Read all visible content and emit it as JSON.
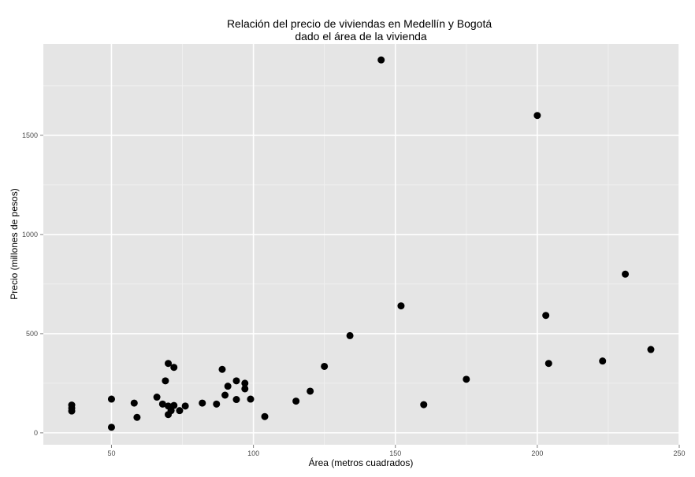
{
  "chart_data": {
    "type": "scatter",
    "title": [
      "Relación del precio de viviendas en Medellín y Bogotá",
      "dado el área de la vivienda"
    ],
    "xlabel": "Área (metros cuadrados)",
    "ylabel": "Precio (millones de pesos)",
    "xlim": [
      26,
      250
    ],
    "ylim": [
      -60,
      1960
    ],
    "xticks": [
      50,
      100,
      150,
      200,
      250
    ],
    "yticks": [
      0,
      500,
      1000,
      1500
    ],
    "grid": true,
    "legend": "none",
    "colors": {
      "panel": "#e5e5e5",
      "grid": "#ffffff",
      "point": "#000000"
    },
    "points": [
      {
        "x": 36,
        "y": 140
      },
      {
        "x": 36,
        "y": 125
      },
      {
        "x": 36,
        "y": 110
      },
      {
        "x": 50,
        "y": 170
      },
      {
        "x": 50,
        "y": 28
      },
      {
        "x": 58,
        "y": 150
      },
      {
        "x": 59,
        "y": 78
      },
      {
        "x": 66,
        "y": 180
      },
      {
        "x": 68,
        "y": 145
      },
      {
        "x": 69,
        "y": 262
      },
      {
        "x": 70,
        "y": 350
      },
      {
        "x": 70,
        "y": 135
      },
      {
        "x": 70,
        "y": 92
      },
      {
        "x": 71,
        "y": 112
      },
      {
        "x": 72,
        "y": 330
      },
      {
        "x": 72,
        "y": 138
      },
      {
        "x": 74,
        "y": 112
      },
      {
        "x": 76,
        "y": 135
      },
      {
        "x": 82,
        "y": 150
      },
      {
        "x": 87,
        "y": 145
      },
      {
        "x": 89,
        "y": 320
      },
      {
        "x": 90,
        "y": 190
      },
      {
        "x": 91,
        "y": 235
      },
      {
        "x": 94,
        "y": 262
      },
      {
        "x": 94,
        "y": 168
      },
      {
        "x": 97,
        "y": 250
      },
      {
        "x": 97,
        "y": 222
      },
      {
        "x": 99,
        "y": 170
      },
      {
        "x": 104,
        "y": 82
      },
      {
        "x": 115,
        "y": 160
      },
      {
        "x": 120,
        "y": 210
      },
      {
        "x": 125,
        "y": 335
      },
      {
        "x": 134,
        "y": 490
      },
      {
        "x": 145,
        "y": 1880
      },
      {
        "x": 152,
        "y": 640
      },
      {
        "x": 160,
        "y": 142
      },
      {
        "x": 175,
        "y": 270
      },
      {
        "x": 200,
        "y": 1600
      },
      {
        "x": 203,
        "y": 592
      },
      {
        "x": 204,
        "y": 350
      },
      {
        "x": 223,
        "y": 362
      },
      {
        "x": 231,
        "y": 800
      },
      {
        "x": 240,
        "y": 420
      }
    ]
  }
}
